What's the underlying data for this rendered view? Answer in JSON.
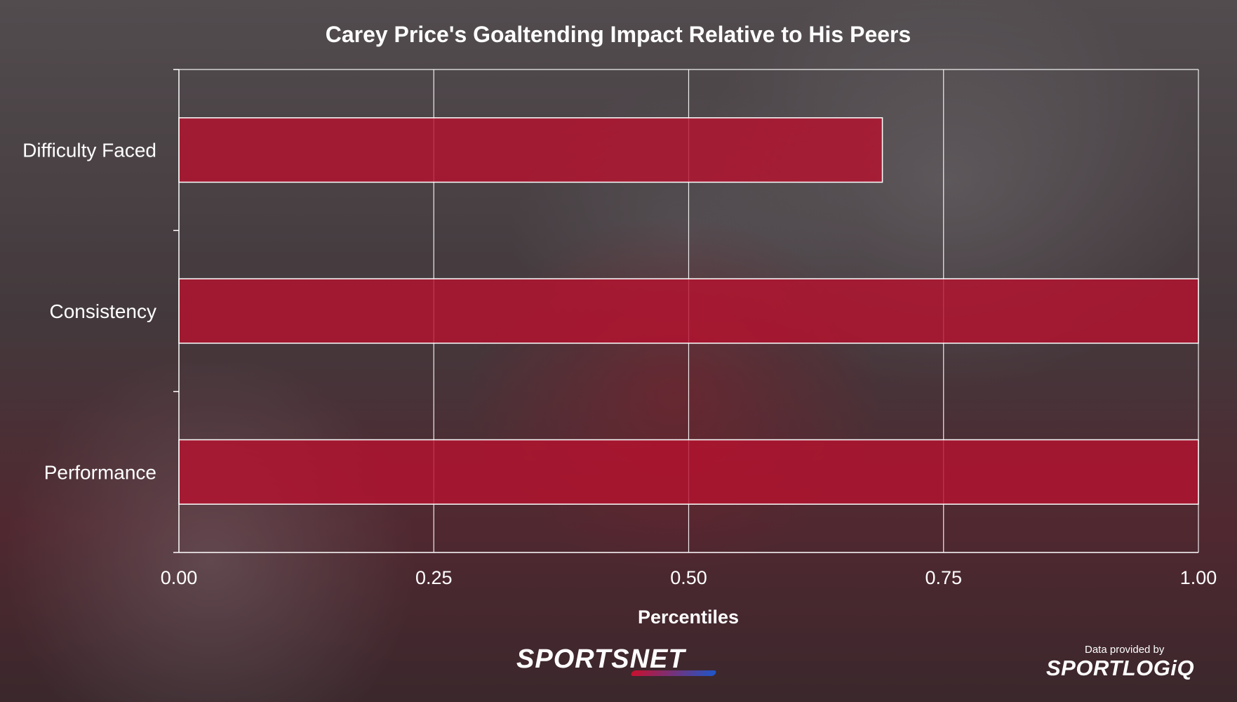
{
  "chart_data": {
    "type": "bar",
    "orientation": "horizontal",
    "title": "Carey Price's Goaltending Impact Relative to His Peers",
    "xlabel": "Percentiles",
    "ylabel": "",
    "categories": [
      "Difficulty Faced",
      "Consistency",
      "Performance"
    ],
    "values": [
      0.69,
      1.0,
      1.0
    ],
    "xlim": [
      0,
      1
    ],
    "xticks": [
      "0.00",
      "0.25",
      "0.50",
      "0.75",
      "1.00"
    ],
    "grid": true,
    "legend": "none",
    "colors": {
      "bar": "#b5122e",
      "bar_outline": "#ffffff",
      "grid": "#ffffff",
      "text": "#ffffff"
    }
  },
  "branding": {
    "sportsnet": "SPORTSNET",
    "provider_label": "Data provided by",
    "sportlogiq": "SPORTLOGiQ"
  }
}
